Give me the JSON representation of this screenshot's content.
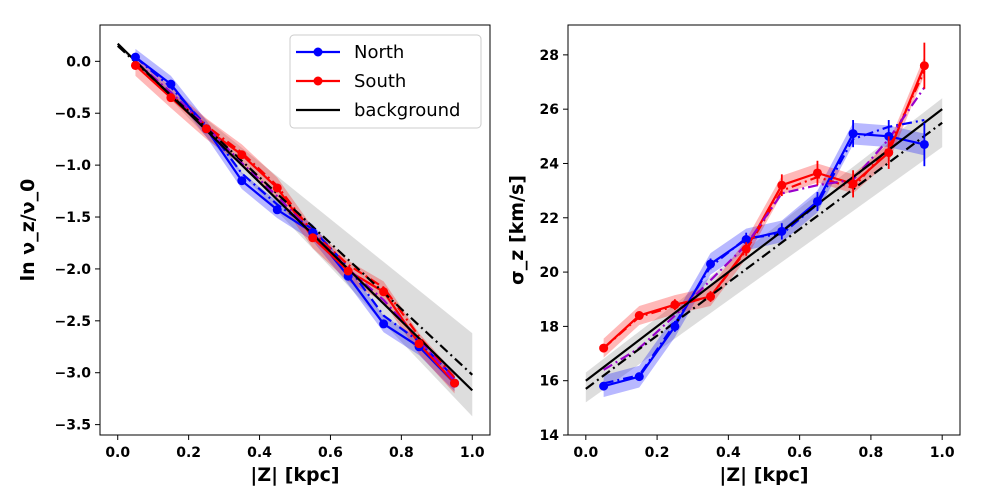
{
  "chart_data": [
    {
      "type": "line",
      "xlabel": "|Z| [kpc]",
      "ylabel": "ln ν_z/ν_0",
      "xlim": [
        -0.05,
        1.05
      ],
      "ylim": [
        -3.6,
        0.35
      ],
      "xticks": [
        "0.0",
        "0.2",
        "0.4",
        "0.6",
        "0.8",
        "1.0"
      ],
      "yticks": [
        "0.0",
        "−0.5",
        "−1.0",
        "−1.5",
        "−2.0",
        "−2.5",
        "−3.0",
        "−3.5"
      ],
      "legend": {
        "placement": "top-right",
        "entries": [
          {
            "label": "North",
            "color": "#0000ff"
          },
          {
            "label": "South",
            "color": "#ff0000"
          },
          {
            "label": "background",
            "color": "#000000"
          }
        ]
      },
      "series": [
        {
          "name": "North",
          "color": "#0000ff",
          "style": "solid-markers",
          "x": [
            0.05,
            0.15,
            0.25,
            0.35,
            0.45,
            0.55,
            0.65,
            0.75,
            0.85,
            0.95
          ],
          "y": [
            0.04,
            -0.22,
            -0.65,
            -1.15,
            -1.43,
            -1.65,
            -2.07,
            -2.53,
            -2.75,
            -3.1
          ],
          "band_half": 0.08
        },
        {
          "name": "South",
          "color": "#ff0000",
          "style": "solid-markers",
          "x": [
            0.05,
            0.15,
            0.25,
            0.35,
            0.45,
            0.55,
            0.65,
            0.75,
            0.85,
            0.95
          ],
          "y": [
            -0.04,
            -0.35,
            -0.65,
            -0.9,
            -1.22,
            -1.7,
            -2.02,
            -2.22,
            -2.72,
            -3.1
          ],
          "band_half": 0.1
        },
        {
          "color": "#0000ff",
          "style": "dashdot",
          "x": [
            0.05,
            0.15,
            0.25,
            0.35,
            0.45,
            0.55,
            0.65,
            0.75,
            0.85,
            0.95
          ],
          "y": [
            0.04,
            -0.25,
            -0.62,
            -1.08,
            -1.38,
            -1.62,
            -1.98,
            -2.45,
            -2.7,
            -3.05
          ]
        },
        {
          "color": "#ff0000",
          "style": "dashdot",
          "x": [
            0.05,
            0.15,
            0.25,
            0.35,
            0.45,
            0.55,
            0.65,
            0.75,
            0.85,
            0.95
          ],
          "y": [
            -0.03,
            -0.32,
            -0.62,
            -0.88,
            -1.2,
            -1.65,
            -1.96,
            -2.18,
            -2.65,
            -3.05
          ]
        },
        {
          "color": "#9900cc",
          "style": "dashdot",
          "x": [
            0.05,
            0.15,
            0.25,
            0.35,
            0.45,
            0.55,
            0.65,
            0.75,
            0.85,
            0.95
          ],
          "y": [
            0.0,
            -0.3,
            -0.63,
            -0.98,
            -1.3,
            -1.66,
            -2.0,
            -2.3,
            -2.68,
            -3.08
          ]
        },
        {
          "name": "background",
          "color": "#000000",
          "style": "solid",
          "x": [
            0.0,
            1.0
          ],
          "y": [
            0.17,
            -3.17
          ]
        },
        {
          "color": "#000000",
          "style": "dashdot",
          "x": [
            0.0,
            1.0
          ],
          "y": [
            0.15,
            -3.02
          ],
          "band_low": [
            0.17,
            -3.42
          ],
          "band_high": [
            0.13,
            -2.62
          ]
        }
      ]
    },
    {
      "type": "line",
      "xlabel": "|Z| [kpc]",
      "ylabel": "σ_z [km/s]",
      "xlim": [
        -0.05,
        1.05
      ],
      "ylim": [
        14,
        29.1
      ],
      "xticks": [
        "0.0",
        "0.2",
        "0.4",
        "0.6",
        "0.8",
        "1.0"
      ],
      "yticks": [
        "14",
        "16",
        "18",
        "20",
        "22",
        "24",
        "26",
        "28"
      ],
      "series": [
        {
          "name": "North",
          "color": "#0000ff",
          "style": "solid-markers",
          "x": [
            0.05,
            0.15,
            0.25,
            0.35,
            0.45,
            0.55,
            0.65,
            0.75,
            0.85,
            0.95
          ],
          "y": [
            15.8,
            16.15,
            18.0,
            20.3,
            21.2,
            21.5,
            22.6,
            25.1,
            25.0,
            24.7
          ],
          "err": [
            0.15,
            0.15,
            0.2,
            0.2,
            0.25,
            0.3,
            0.35,
            0.5,
            0.6,
            0.8
          ],
          "band_half": 0.4
        },
        {
          "name": "South",
          "color": "#ff0000",
          "style": "solid-markers",
          "x": [
            0.05,
            0.15,
            0.25,
            0.35,
            0.45,
            0.55,
            0.65,
            0.75,
            0.85,
            0.95
          ],
          "y": [
            17.2,
            18.4,
            18.8,
            19.1,
            20.85,
            23.2,
            23.65,
            23.25,
            24.4,
            27.6
          ],
          "err": [
            0.15,
            0.15,
            0.2,
            0.2,
            0.25,
            0.4,
            0.45,
            0.5,
            0.6,
            0.85
          ],
          "band_half": 0.35
        },
        {
          "color": "#0000ff",
          "style": "dashdot",
          "x": [
            0.05,
            0.15,
            0.25,
            0.35,
            0.45,
            0.55,
            0.65,
            0.75,
            0.85,
            0.95
          ],
          "y": [
            15.9,
            16.2,
            18.1,
            20.2,
            21.25,
            21.4,
            22.5,
            24.9,
            25.35,
            25.6
          ]
        },
        {
          "color": "#ff0000",
          "style": "dashdot",
          "x": [
            0.05,
            0.15,
            0.25,
            0.35,
            0.45,
            0.55,
            0.65,
            0.75,
            0.85,
            0.95
          ],
          "y": [
            17.2,
            18.35,
            18.75,
            19.1,
            20.8,
            23.0,
            23.5,
            23.1,
            24.6,
            27.4
          ]
        },
        {
          "color": "#9900cc",
          "style": "dashdot",
          "x": [
            0.05,
            0.15,
            0.25,
            0.35,
            0.45,
            0.55,
            0.65,
            0.75,
            0.85,
            0.95
          ],
          "y": [
            16.4,
            17.2,
            18.4,
            19.7,
            21.0,
            22.9,
            23.2,
            23.4,
            24.9,
            26.8
          ]
        },
        {
          "name": "background",
          "color": "#000000",
          "style": "solid",
          "x": [
            0.0,
            1.0
          ],
          "y": [
            16.0,
            26.0
          ]
        },
        {
          "color": "#000000",
          "style": "dashdot",
          "x": [
            0.0,
            1.0
          ],
          "y": [
            15.7,
            25.5
          ],
          "band_low": [
            15.2,
            24.6
          ],
          "band_high": [
            16.3,
            26.4
          ]
        }
      ]
    }
  ]
}
